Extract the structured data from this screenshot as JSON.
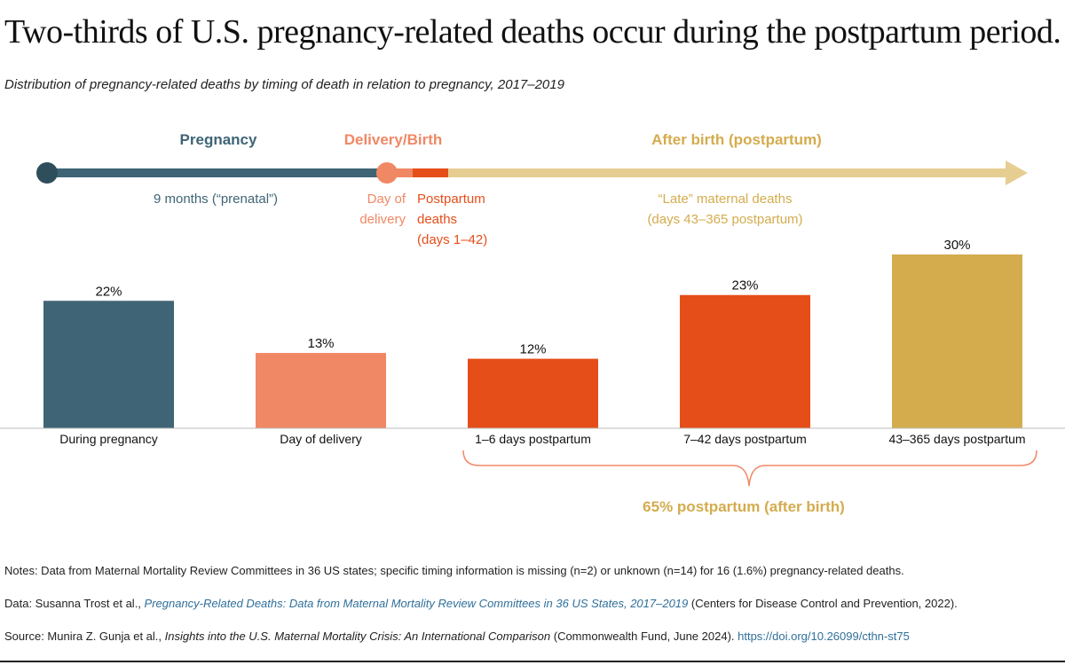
{
  "title": "Two-thirds of U.S. pregnancy-related deaths occur during the postpartum period.",
  "subtitle": "Distribution of pregnancy-related deaths by timing of death in relation to pregnancy, 2017–2019",
  "timeline": {
    "pregnancy_label": "Pregnancy",
    "delivery_label": "Delivery/Birth",
    "after_label": "After birth (postpartum)",
    "prenatal_note": "9 months (“prenatal”)",
    "day_of_1": "Day of",
    "day_of_2": "delivery",
    "pp_1": "Postpartum",
    "pp_2": "deaths",
    "pp_3": "(days 1–42)",
    "late_1": "“Late” maternal deaths",
    "late_2": "(days 43–365 postpartum)"
  },
  "chart_data": {
    "type": "bar",
    "categories": [
      "During pregnancy",
      "Day of delivery",
      "1–6 days postpartum",
      "7–42 days postpartum",
      "43–365 days postpartum"
    ],
    "values": [
      22,
      13,
      12,
      23,
      30
    ],
    "data_labels": [
      "22%",
      "13%",
      "12%",
      "23%",
      "30%"
    ],
    "colors": [
      "#3f6475",
      "#f08865",
      "#e64e19",
      "#e64e19",
      "#d4ac4e"
    ],
    "ylim": [
      0,
      30
    ],
    "grid": false,
    "annotation": "65% postpartum (after birth)"
  },
  "colors": {
    "pregnancy": "#3f6475",
    "delivery": "#f08865",
    "postpartum": "#e64e19",
    "late": "#d4ac4e",
    "late_light": "#e6cd92"
  },
  "notes": {
    "notes": "Notes: Data from Maternal Mortality Review Committees in 36 US states; specific timing information is missing (n=2) or unknown (n=14) for 16 (1.6%) pregnancy-related deaths.",
    "data_prefix": "Data: Susanna Trost et al., ",
    "data_title": "Pregnancy-Related Deaths: Data from Maternal Mortality Review Committees in 36 US States, 2017–2019",
    "data_suffix": " (Centers for Disease Control and Prevention, 2022).",
    "source_prefix": "Source: Munira Z. Gunja et al., ",
    "source_title": "Insights into the U.S. Maternal Mortality Crisis: An International Comparison",
    "source_suffix": " (Commonwealth Fund, June 2024). ",
    "source_link": "https://doi.org/10.26099/cthn-st75"
  }
}
